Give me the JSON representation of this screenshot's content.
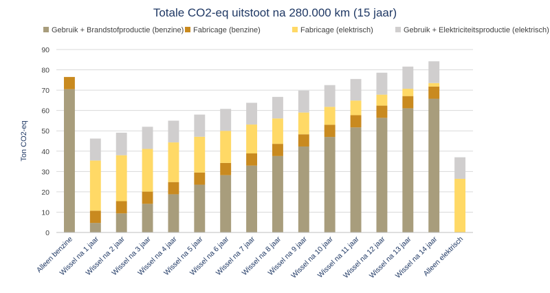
{
  "chart_data": {
    "type": "bar",
    "stacked": true,
    "title": "Totale CO2-eq uitstoot na 280.000 km (15 jaar)",
    "xlabel": "",
    "ylabel": "Ton CO2-eq",
    "ylim": [
      0,
      90
    ],
    "yticks": [
      0,
      10,
      20,
      30,
      40,
      50,
      60,
      70,
      80,
      90
    ],
    "grid": true,
    "legend_position": "top",
    "categories": [
      "Alleen benzine",
      "Wissel na 1 jaar",
      "Wissel na 2 jaar",
      "Wissel na 3 jaar",
      "Wissel na 4 jaar",
      "Wissel na 5 jaar",
      "Wissel na 6 jaar",
      "Wissel na 7 jaar",
      "Wissel na 8 jaar",
      "Wissel na 9 jaar",
      "Wissel na 10 jaar",
      "Wissel na 11 jaar",
      "Wissel na 12 jaar",
      "Wissel na 13 jaar",
      "Wissel na 14 jaar",
      "Alleen elektrisch"
    ],
    "series": [
      {
        "name": "Gebruik + Brandstofproductie (benzine)",
        "color": "#a89d7c",
        "values": [
          70.5,
          4.7,
          9.4,
          14.1,
          18.8,
          23.5,
          28.2,
          32.9,
          37.6,
          42.3,
          47.0,
          51.7,
          56.4,
          61.1,
          65.8,
          0
        ]
      },
      {
        "name": "Fabricage (benzine)",
        "color": "#c98a1f",
        "values": [
          6.0,
          6.0,
          6.0,
          6.0,
          6.0,
          6.0,
          6.0,
          6.0,
          6.0,
          6.0,
          6.0,
          6.0,
          6.0,
          6.0,
          6.0,
          0
        ]
      },
      {
        "name": "Fabricage (elektrisch)",
        "color": "#ffd966",
        "values": [
          0,
          24.7,
          22.6,
          21.0,
          19.5,
          17.6,
          15.8,
          14.2,
          12.5,
          10.7,
          8.8,
          7.2,
          5.4,
          3.6,
          1.7,
          26.4
        ]
      },
      {
        "name": "Gebruik + Elektriciteitsproductie (elektrisch)",
        "color": "#d0cece",
        "values": [
          0,
          10.8,
          11.1,
          10.9,
          10.7,
          10.9,
          10.8,
          10.7,
          10.6,
          10.8,
          10.7,
          10.6,
          10.8,
          10.9,
          10.7,
          10.6
        ]
      }
    ]
  }
}
